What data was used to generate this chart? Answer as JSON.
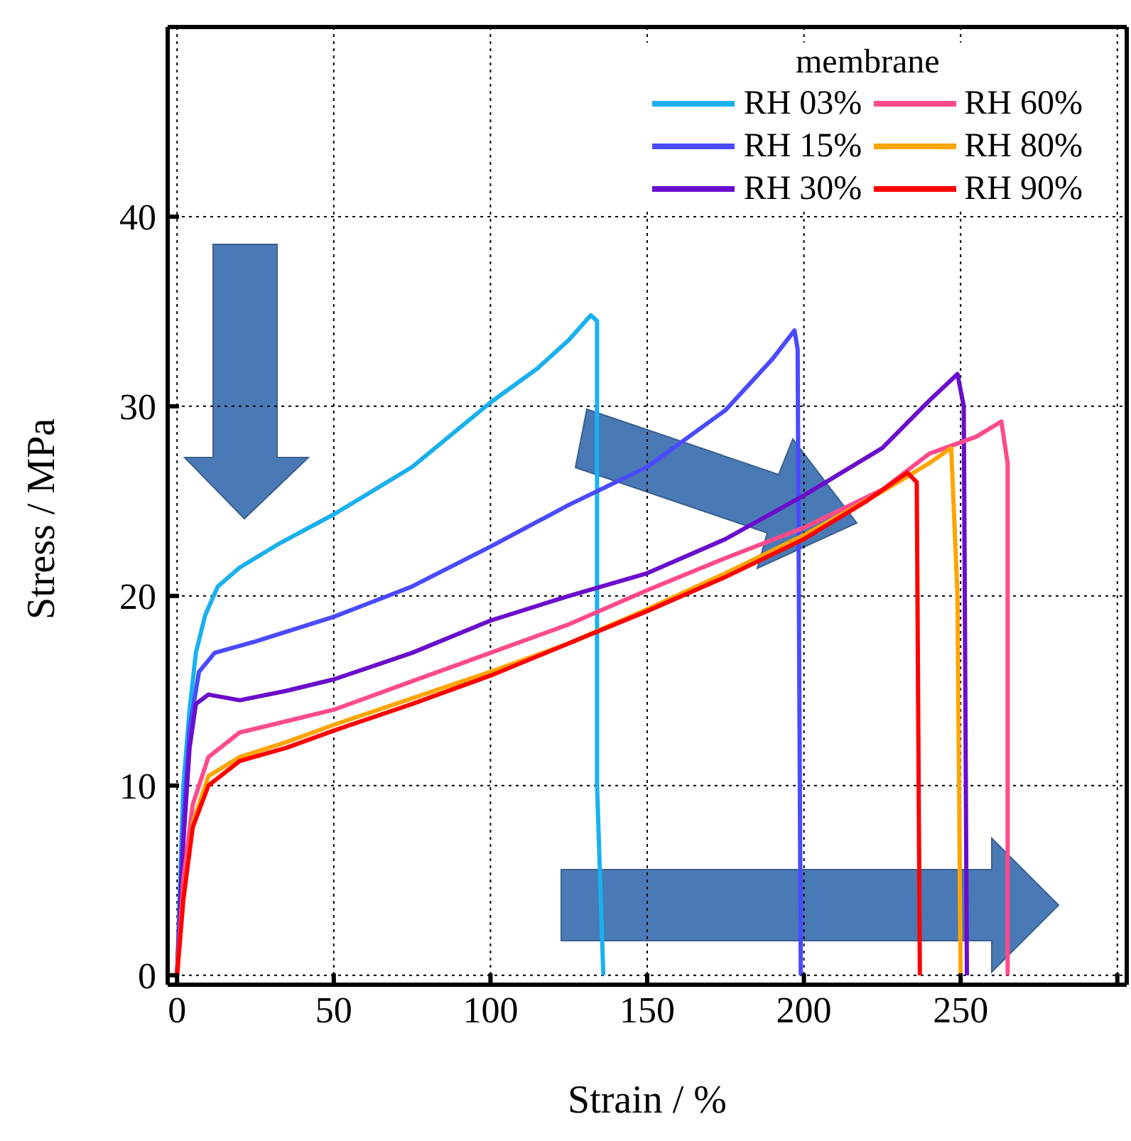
{
  "chart_data": {
    "type": "line",
    "xlabel": "Strain  /  %",
    "ylabel": "Stress  /  MPa",
    "legend_title": "membrane",
    "xlim": [
      -3,
      303
    ],
    "ylim": [
      -0.5,
      50
    ],
    "xticks": [
      0,
      50,
      100,
      150,
      200,
      250,
      {
        "value": 300,
        "label": null
      }
    ],
    "yticks": [
      0,
      10,
      20,
      30,
      40
    ],
    "grid": true,
    "legend": "top right",
    "marker": "none",
    "line_style": "solid",
    "series": [
      {
        "name": "RH 03%",
        "color": "#1ab0f0",
        "x": [
          0,
          1,
          2,
          4,
          6,
          9,
          13,
          20,
          33,
          50,
          75,
          100,
          115,
          125,
          132,
          134,
          134,
          136
        ],
        "values": [
          0,
          5,
          10,
          14,
          17,
          19,
          20.5,
          21.5,
          22.8,
          24.3,
          26.8,
          30.2,
          32,
          33.5,
          34.8,
          34.5,
          10,
          0
        ]
      },
      {
        "name": "RH 15%",
        "color": "#4a4aff",
        "x": [
          0,
          2,
          4,
          7,
          12,
          25,
          50,
          75,
          100,
          125,
          150,
          175,
          190,
          197,
          198,
          199
        ],
        "values": [
          0,
          8,
          13,
          16,
          17,
          17.6,
          18.9,
          20.5,
          22.6,
          24.8,
          26.8,
          29.8,
          32.5,
          34,
          33,
          0
        ]
      },
      {
        "name": "RH 30%",
        "color": "#6a0dcc",
        "x": [
          0,
          2,
          4,
          6,
          10,
          20,
          35,
          50,
          75,
          100,
          125,
          150,
          175,
          200,
          225,
          240,
          249,
          251,
          252
        ],
        "values": [
          0,
          7,
          12,
          14.3,
          14.8,
          14.5,
          15,
          15.6,
          17,
          18.7,
          20,
          21.2,
          23,
          25.3,
          27.8,
          30.3,
          31.7,
          30,
          0
        ]
      },
      {
        "name": "RH 60%",
        "color": "#ff4a8c",
        "x": [
          0,
          2,
          5,
          10,
          20,
          35,
          50,
          75,
          100,
          125,
          150,
          175,
          200,
          225,
          240,
          255,
          263,
          265,
          265
        ],
        "values": [
          0,
          5,
          9,
          11.5,
          12.8,
          13.4,
          14,
          15.5,
          17,
          18.5,
          20.3,
          22,
          23.6,
          25.6,
          27.5,
          28.4,
          29.2,
          27,
          0
        ]
      },
      {
        "name": "RH 80%",
        "color": "#ffa500",
        "x": [
          0,
          2,
          5,
          10,
          20,
          35,
          50,
          75,
          100,
          125,
          150,
          175,
          200,
          225,
          240,
          247,
          249,
          250
        ],
        "values": [
          0,
          4,
          8,
          10.5,
          11.5,
          12.3,
          13.2,
          14.6,
          16,
          17.5,
          19.3,
          21.2,
          23.2,
          25.5,
          27,
          27.8,
          20,
          0
        ]
      },
      {
        "name": "RH 90%",
        "color": "#ff0000",
        "x": [
          0,
          2,
          5,
          10,
          20,
          35,
          50,
          75,
          100,
          125,
          150,
          175,
          200,
          220,
          233,
          236,
          237
        ],
        "values": [
          0,
          4,
          7.8,
          10,
          11.3,
          12,
          12.9,
          14.3,
          15.8,
          17.5,
          19.2,
          21,
          23,
          25,
          26.5,
          26,
          0
        ]
      }
    ]
  }
}
